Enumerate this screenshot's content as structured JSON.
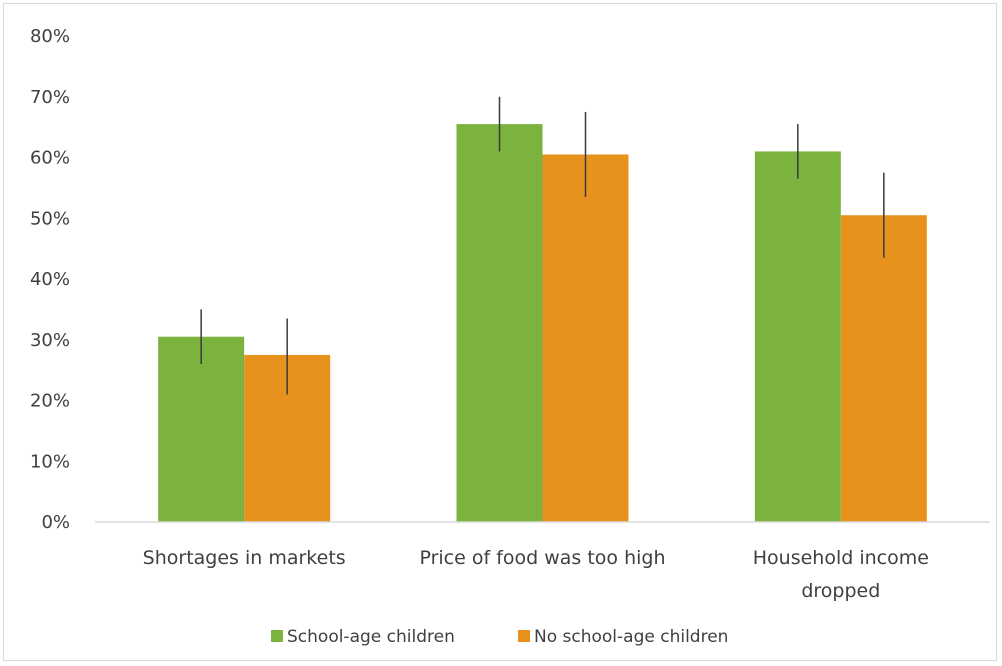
{
  "chart_data": {
    "type": "bar",
    "categories": [
      [
        "Shortages in markets"
      ],
      [
        "Price of food was too high"
      ],
      [
        "Household income",
        "dropped"
      ]
    ],
    "series": [
      {
        "name": "School-age children",
        "color": "#7cb33f",
        "values": [
          30.5,
          65.5,
          61.0
        ],
        "error_low": [
          26.0,
          61.0,
          56.5
        ],
        "error_high": [
          35.0,
          70.0,
          65.5
        ]
      },
      {
        "name": "No school-age children",
        "color": "#e8921e",
        "values": [
          27.5,
          60.5,
          50.5
        ],
        "error_low": [
          21.0,
          53.5,
          43.5
        ],
        "error_high": [
          33.5,
          67.5,
          57.5
        ]
      }
    ],
    "y_ticks": [
      "0%",
      "10%",
      "20%",
      "30%",
      "40%",
      "50%",
      "60%",
      "70%",
      "80%"
    ],
    "ylim": [
      0,
      80
    ],
    "grid": false,
    "legend_position": "bottom",
    "axis_color": "#d9d9d9",
    "errorbar_color": "#3a3a3a"
  }
}
